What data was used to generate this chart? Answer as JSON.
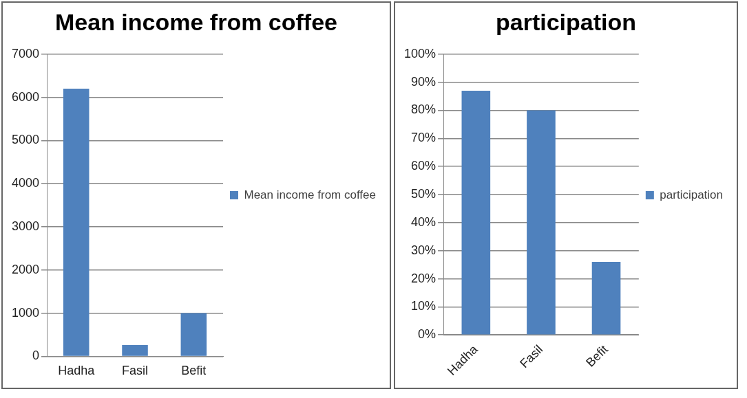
{
  "chart_data": [
    {
      "type": "bar",
      "title": "Mean income from coffee",
      "categories": [
        "Hadha",
        "Fasil",
        "Befit"
      ],
      "series": [
        {
          "name": "Mean income from coffee",
          "color": "#4f81bd",
          "values": [
            6200,
            260,
            1000
          ]
        }
      ],
      "ylim": [
        0,
        7000
      ],
      "yticks": [
        0,
        1000,
        2000,
        3000,
        4000,
        5000,
        6000,
        7000
      ],
      "grid": "y",
      "legend": "right"
    },
    {
      "type": "bar",
      "title": "participation",
      "categories": [
        "Hadha",
        "Fasil",
        "Befit"
      ],
      "series": [
        {
          "name": "participation",
          "color": "#4f81bd",
          "values": [
            87,
            80,
            26
          ]
        }
      ],
      "ylim": [
        0,
        100
      ],
      "yticks": [
        {
          "value": 0,
          "label": "0%"
        },
        {
          "value": 10,
          "label": "10%"
        },
        {
          "value": 20,
          "label": "20%"
        },
        {
          "value": 30,
          "label": "30%"
        },
        {
          "value": 40,
          "label": "40%"
        },
        {
          "value": 50,
          "label": "50%"
        },
        {
          "value": 60,
          "label": "60%"
        },
        {
          "value": 70,
          "label": "70%"
        },
        {
          "value": 80,
          "label": "80%"
        },
        {
          "value": 90,
          "label": "90%"
        },
        {
          "value": 100,
          "label": "100%"
        }
      ],
      "grid": "y",
      "legend": "right"
    }
  ]
}
